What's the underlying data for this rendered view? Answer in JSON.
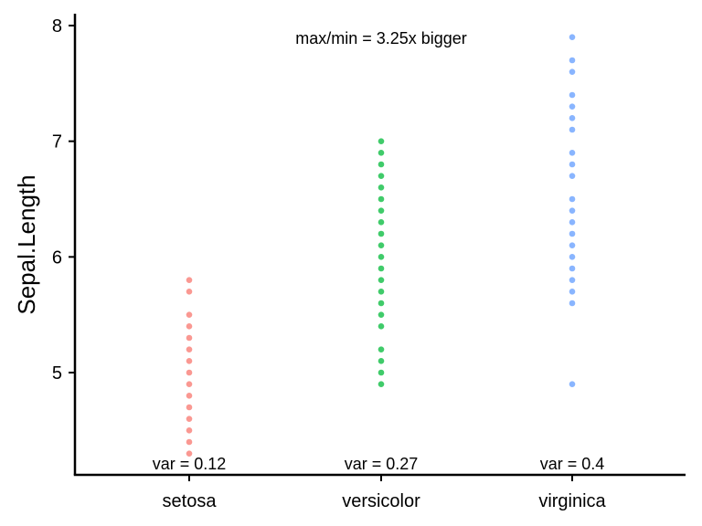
{
  "chart_data": {
    "type": "scatter",
    "title": "",
    "xlabel": "",
    "ylabel": "Sepal.Length",
    "categories": [
      "setosa",
      "versicolor",
      "virginica"
    ],
    "ylim": [
      4.2,
      8.08
    ],
    "yticks": [
      5,
      6,
      7,
      8
    ],
    "grid": false,
    "legend": "none",
    "annotation": "max/min = 3.25x bigger",
    "series": [
      {
        "category": "setosa",
        "color": "#F8766D",
        "values": [
          4.3,
          4.4,
          4.5,
          4.6,
          4.7,
          4.8,
          4.9,
          5.0,
          5.1,
          5.2,
          5.3,
          5.4,
          5.5,
          5.7,
          5.8
        ],
        "var_label": "var = 0.12"
      },
      {
        "category": "versicolor",
        "color": "#00BA38",
        "values": [
          4.9,
          5.0,
          5.1,
          5.2,
          5.4,
          5.5,
          5.6,
          5.7,
          5.8,
          5.9,
          6.0,
          6.1,
          6.2,
          6.3,
          6.4,
          6.5,
          6.6,
          6.7,
          6.8,
          6.9,
          7.0
        ],
        "var_label": "var = 0.27"
      },
      {
        "category": "virginica",
        "color": "#619CFF",
        "values": [
          4.9,
          5.6,
          5.7,
          5.8,
          5.9,
          6.0,
          6.1,
          6.2,
          6.3,
          6.4,
          6.5,
          6.7,
          6.8,
          6.9,
          7.1,
          7.2,
          7.3,
          7.4,
          7.6,
          7.7,
          7.9
        ],
        "var_label": "var = 0.4"
      }
    ]
  }
}
